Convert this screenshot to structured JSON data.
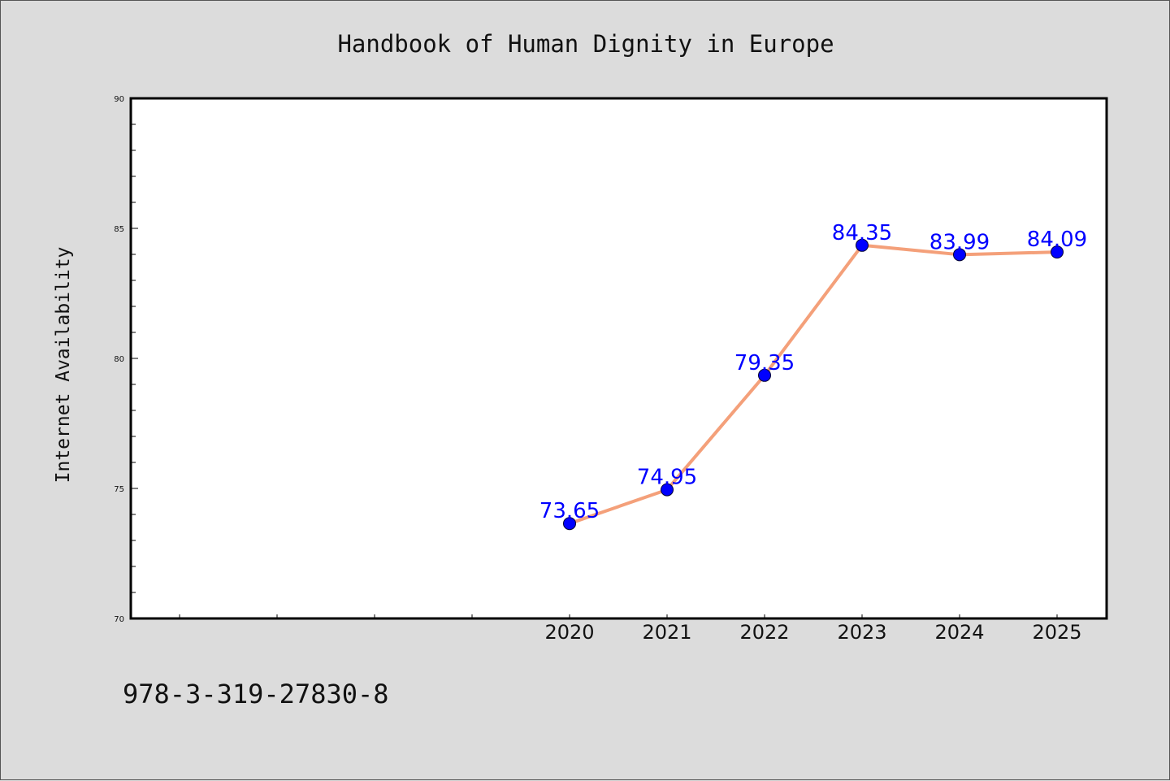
{
  "chart_data": {
    "type": "line",
    "title": "Handbook of Human Dignity in Europe",
    "ylabel": "Internet Availability",
    "xlabel": "",
    "ylim": [
      70,
      90
    ],
    "yticks": [
      70,
      75,
      80,
      85,
      90
    ],
    "categories": [
      "2020",
      "2021",
      "2022",
      "2023",
      "2024",
      "2025"
    ],
    "series": [
      {
        "values": [
          73.65,
          74.95,
          79.35,
          84.35,
          83.99,
          84.09
        ],
        "line_color": "#f4a07a",
        "marker_color": "#0000ff"
      }
    ],
    "data_labels": [
      "73.65",
      "74.95",
      "79.35",
      "84.35",
      "83.99",
      "84.09"
    ],
    "grid": false,
    "background": "#ffffff"
  },
  "footer": {
    "code": "978-3-319-27830-8"
  },
  "colors": {
    "page_background": "#dcdcdc",
    "label_color": "#0000ff"
  }
}
